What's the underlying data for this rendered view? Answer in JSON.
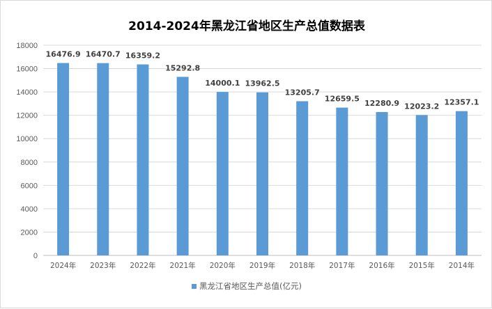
{
  "chart_data": {
    "type": "bar",
    "title": "2014-2024年黑龙江省地区生产总值数据表",
    "categories": [
      "2024年",
      "2023年",
      "2022年",
      "2021年",
      "2020年",
      "2019年",
      "2018年",
      "2017年",
      "2016年",
      "2015年",
      "2014年"
    ],
    "series": [
      {
        "name": "黑龙江省地区生产总值(亿元)",
        "values": [
          16476.9,
          16470.7,
          16359.2,
          15292.8,
          14000.1,
          13962.5,
          13205.7,
          12659.5,
          12280.9,
          12023.2,
          12357.1
        ],
        "color": "#5b9bd5"
      }
    ],
    "data_labels": [
      "16476.9",
      "16470.7",
      "16359.2",
      "15292.8",
      "14000.1",
      "13962.5",
      "13205.7",
      "12659.5",
      "12280.9",
      "12023.2",
      "12357.1"
    ],
    "yticks": [
      "0",
      "2000",
      "4000",
      "6000",
      "8000",
      "10000",
      "12000",
      "14000",
      "16000",
      "18000"
    ],
    "ylim": [
      0,
      18000
    ],
    "grid": true,
    "legend": "bottom",
    "xlabel": "",
    "ylabel": ""
  }
}
